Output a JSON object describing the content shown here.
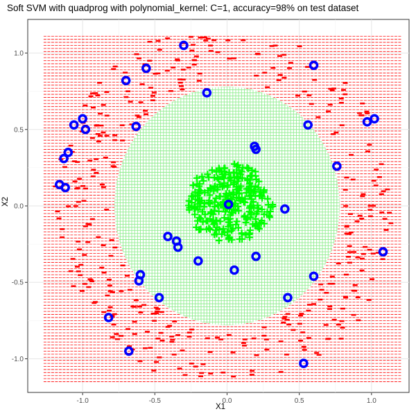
{
  "chart_data": {
    "type": "scatter",
    "title": "Soft SVM with quadprog with polynomial_kernel: C=1, accuracy=98% on test dataset",
    "xlabel": "X1",
    "ylabel": "X2",
    "xlim": [
      -1.38,
      1.26
    ],
    "ylim": [
      -1.22,
      1.22
    ],
    "x_ticks": [
      -1.0,
      -0.5,
      0.0,
      0.5,
      1.0
    ],
    "y_ticks": [
      -1.0,
      -0.5,
      0.0,
      0.5,
      1.0
    ],
    "x_tick_labels": [
      "-1.0",
      "-0.5",
      "0.0",
      "0.5",
      "1.0"
    ],
    "y_tick_labels": [
      "-1.0",
      "-0.5",
      "0.0",
      "0.5",
      "1.0"
    ],
    "grid": true,
    "decision_region": {
      "grid_x_range": [
        -1.27,
        1.21
      ],
      "grid_y_range": [
        -1.15,
        1.12
      ],
      "grid_step": 0.02,
      "positive_region_center": [
        0.0,
        0.0
      ],
      "positive_region_radius": 0.78,
      "positive_color": "#90ee90",
      "negative_color": "#ff0000"
    },
    "inner_class": {
      "marker": "plus",
      "color": "#00ff00",
      "n": 300,
      "radius": 0.3
    },
    "outer_class": {
      "marker": "dash",
      "color": "#ff0000",
      "n": 400,
      "ring": [
        0.82,
        1.2
      ]
    },
    "support_vectors": {
      "marker": "ring",
      "color": "#0000ff",
      "points": [
        [
          -0.3,
          1.05
        ],
        [
          0.6,
          0.92
        ],
        [
          -0.7,
          0.82
        ],
        [
          -0.56,
          0.9
        ],
        [
          -0.14,
          0.74
        ],
        [
          -1.0,
          0.57
        ],
        [
          -1.06,
          0.53
        ],
        [
          -0.98,
          0.5
        ],
        [
          -0.63,
          0.52
        ],
        [
          0.56,
          0.53
        ],
        [
          0.97,
          0.55
        ],
        [
          1.02,
          0.57
        ],
        [
          -1.1,
          0.35
        ],
        [
          -1.13,
          0.31
        ],
        [
          0.19,
          0.39
        ],
        [
          0.2,
          0.37
        ],
        [
          0.76,
          0.26
        ],
        [
          -1.16,
          0.14
        ],
        [
          -1.12,
          0.12
        ],
        [
          0.01,
          0.01
        ],
        [
          0.4,
          -0.02
        ],
        [
          -0.41,
          -0.2
        ],
        [
          -0.35,
          -0.23
        ],
        [
          -0.34,
          -0.27
        ],
        [
          0.2,
          -0.33
        ],
        [
          -0.2,
          -0.36
        ],
        [
          0.05,
          -0.42
        ],
        [
          1.08,
          -0.3
        ],
        [
          -0.6,
          -0.45
        ],
        [
          -0.61,
          -0.49
        ],
        [
          0.6,
          -0.46
        ],
        [
          -0.47,
          -0.6
        ],
        [
          0.42,
          -0.6
        ],
        [
          -0.82,
          -0.73
        ],
        [
          -0.68,
          -0.95
        ],
        [
          0.53,
          -1.03
        ]
      ]
    }
  }
}
